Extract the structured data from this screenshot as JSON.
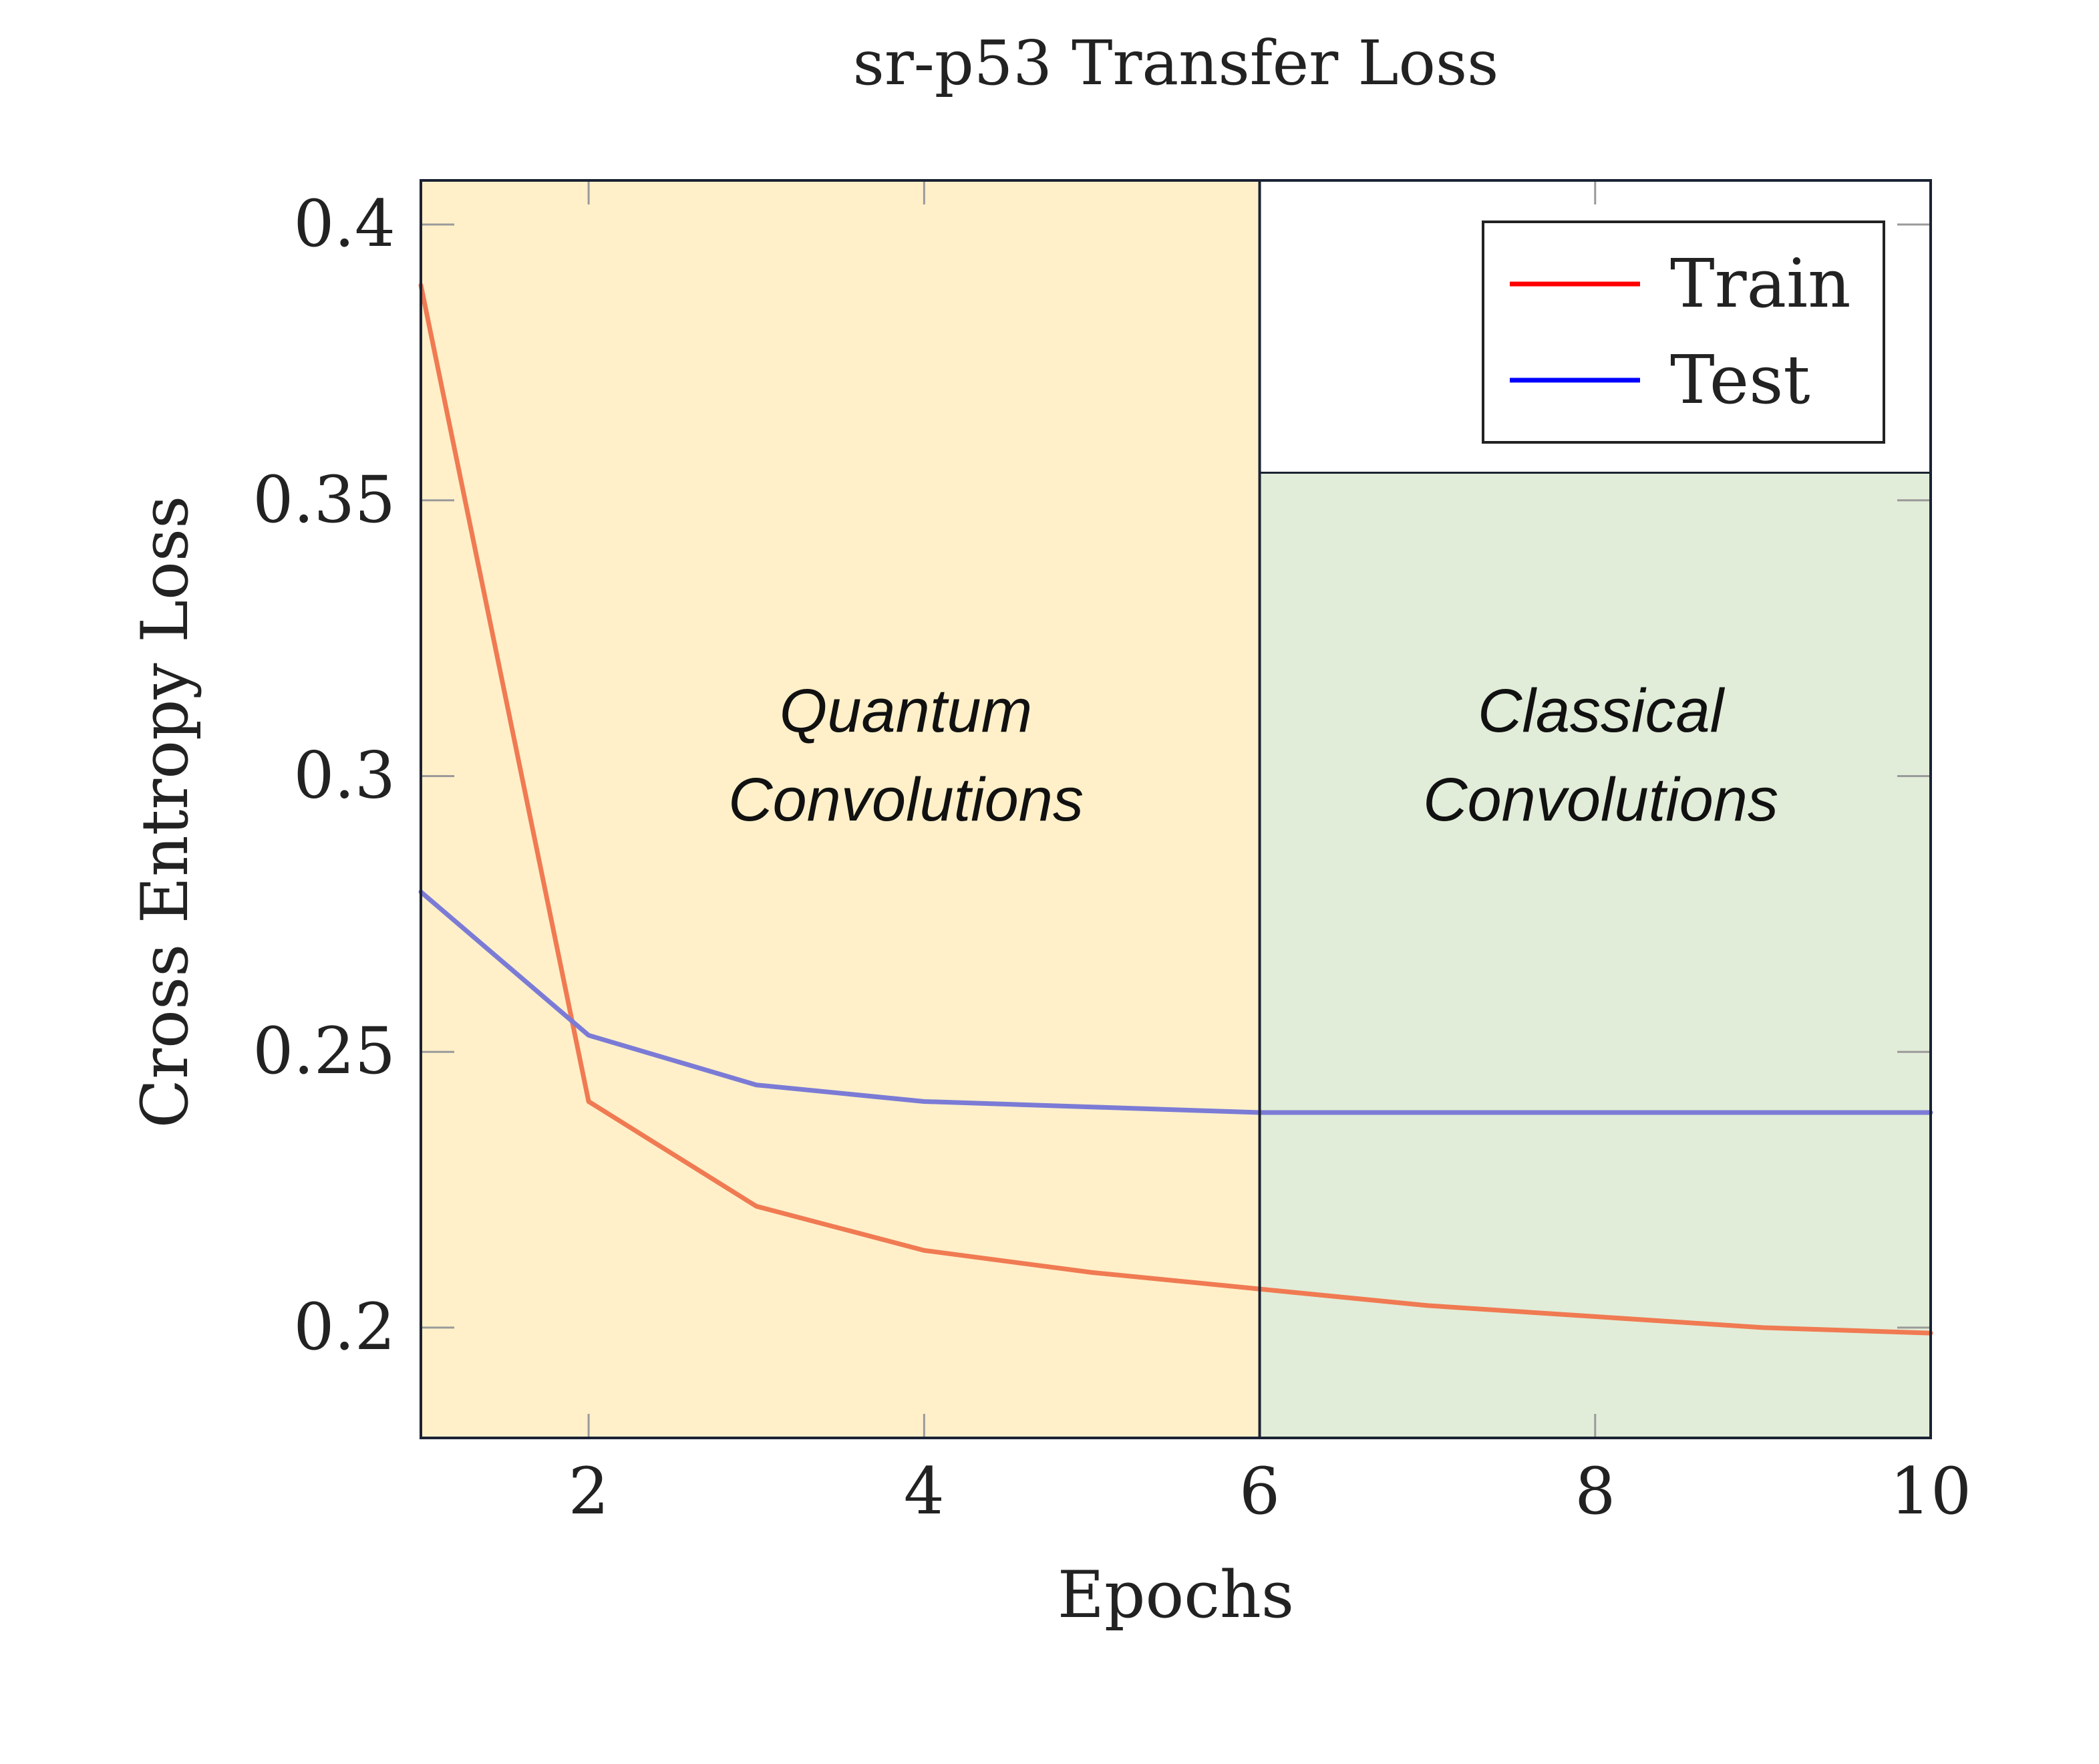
{
  "chart_data": {
    "type": "line",
    "title": "sr-p53 Transfer Loss",
    "xlabel": "Epochs",
    "ylabel": "Cross Entropy Loss",
    "xlim": [
      1,
      10
    ],
    "ylim": [
      0.18,
      0.408
    ],
    "x_ticks": [
      2,
      4,
      6,
      8,
      10
    ],
    "x_tick_labels": [
      "2",
      "4",
      "6",
      "8",
      "10"
    ],
    "y_ticks": [
      0.2,
      0.25,
      0.3,
      0.35,
      0.4
    ],
    "y_tick_labels": [
      "0.2",
      "0.25",
      "0.3",
      "0.35",
      "0.4"
    ],
    "grid": false,
    "legend_position": "top-right",
    "x": [
      1,
      2,
      3,
      4,
      5,
      6,
      7,
      8,
      9,
      10
    ],
    "series": [
      {
        "name": "Train",
        "color": "#f07a52",
        "legend_color": "#ff0000",
        "values": [
          0.389,
          0.241,
          0.222,
          0.214,
          0.21,
          0.207,
          0.204,
          0.202,
          0.2,
          0.199
        ]
      },
      {
        "name": "Test",
        "color": "#7b7bd6",
        "legend_color": "#0000ff",
        "values": [
          0.279,
          0.253,
          0.244,
          0.241,
          0.24,
          0.239,
          0.239,
          0.239,
          0.239,
          0.239
        ]
      }
    ],
    "regions": [
      {
        "label_line1": "Quantum",
        "label_line2": "Convolutions",
        "x_range": [
          1,
          6
        ],
        "y_range": [
          0.18,
          0.408
        ],
        "color": "#fff0c9"
      },
      {
        "label_line1": "Classical",
        "label_line2": "Convolutions",
        "x_range": [
          6,
          10
        ],
        "y_range": [
          0.18,
          0.355
        ],
        "color": "#e1edd8"
      }
    ],
    "frame_color": "#1a2233"
  }
}
